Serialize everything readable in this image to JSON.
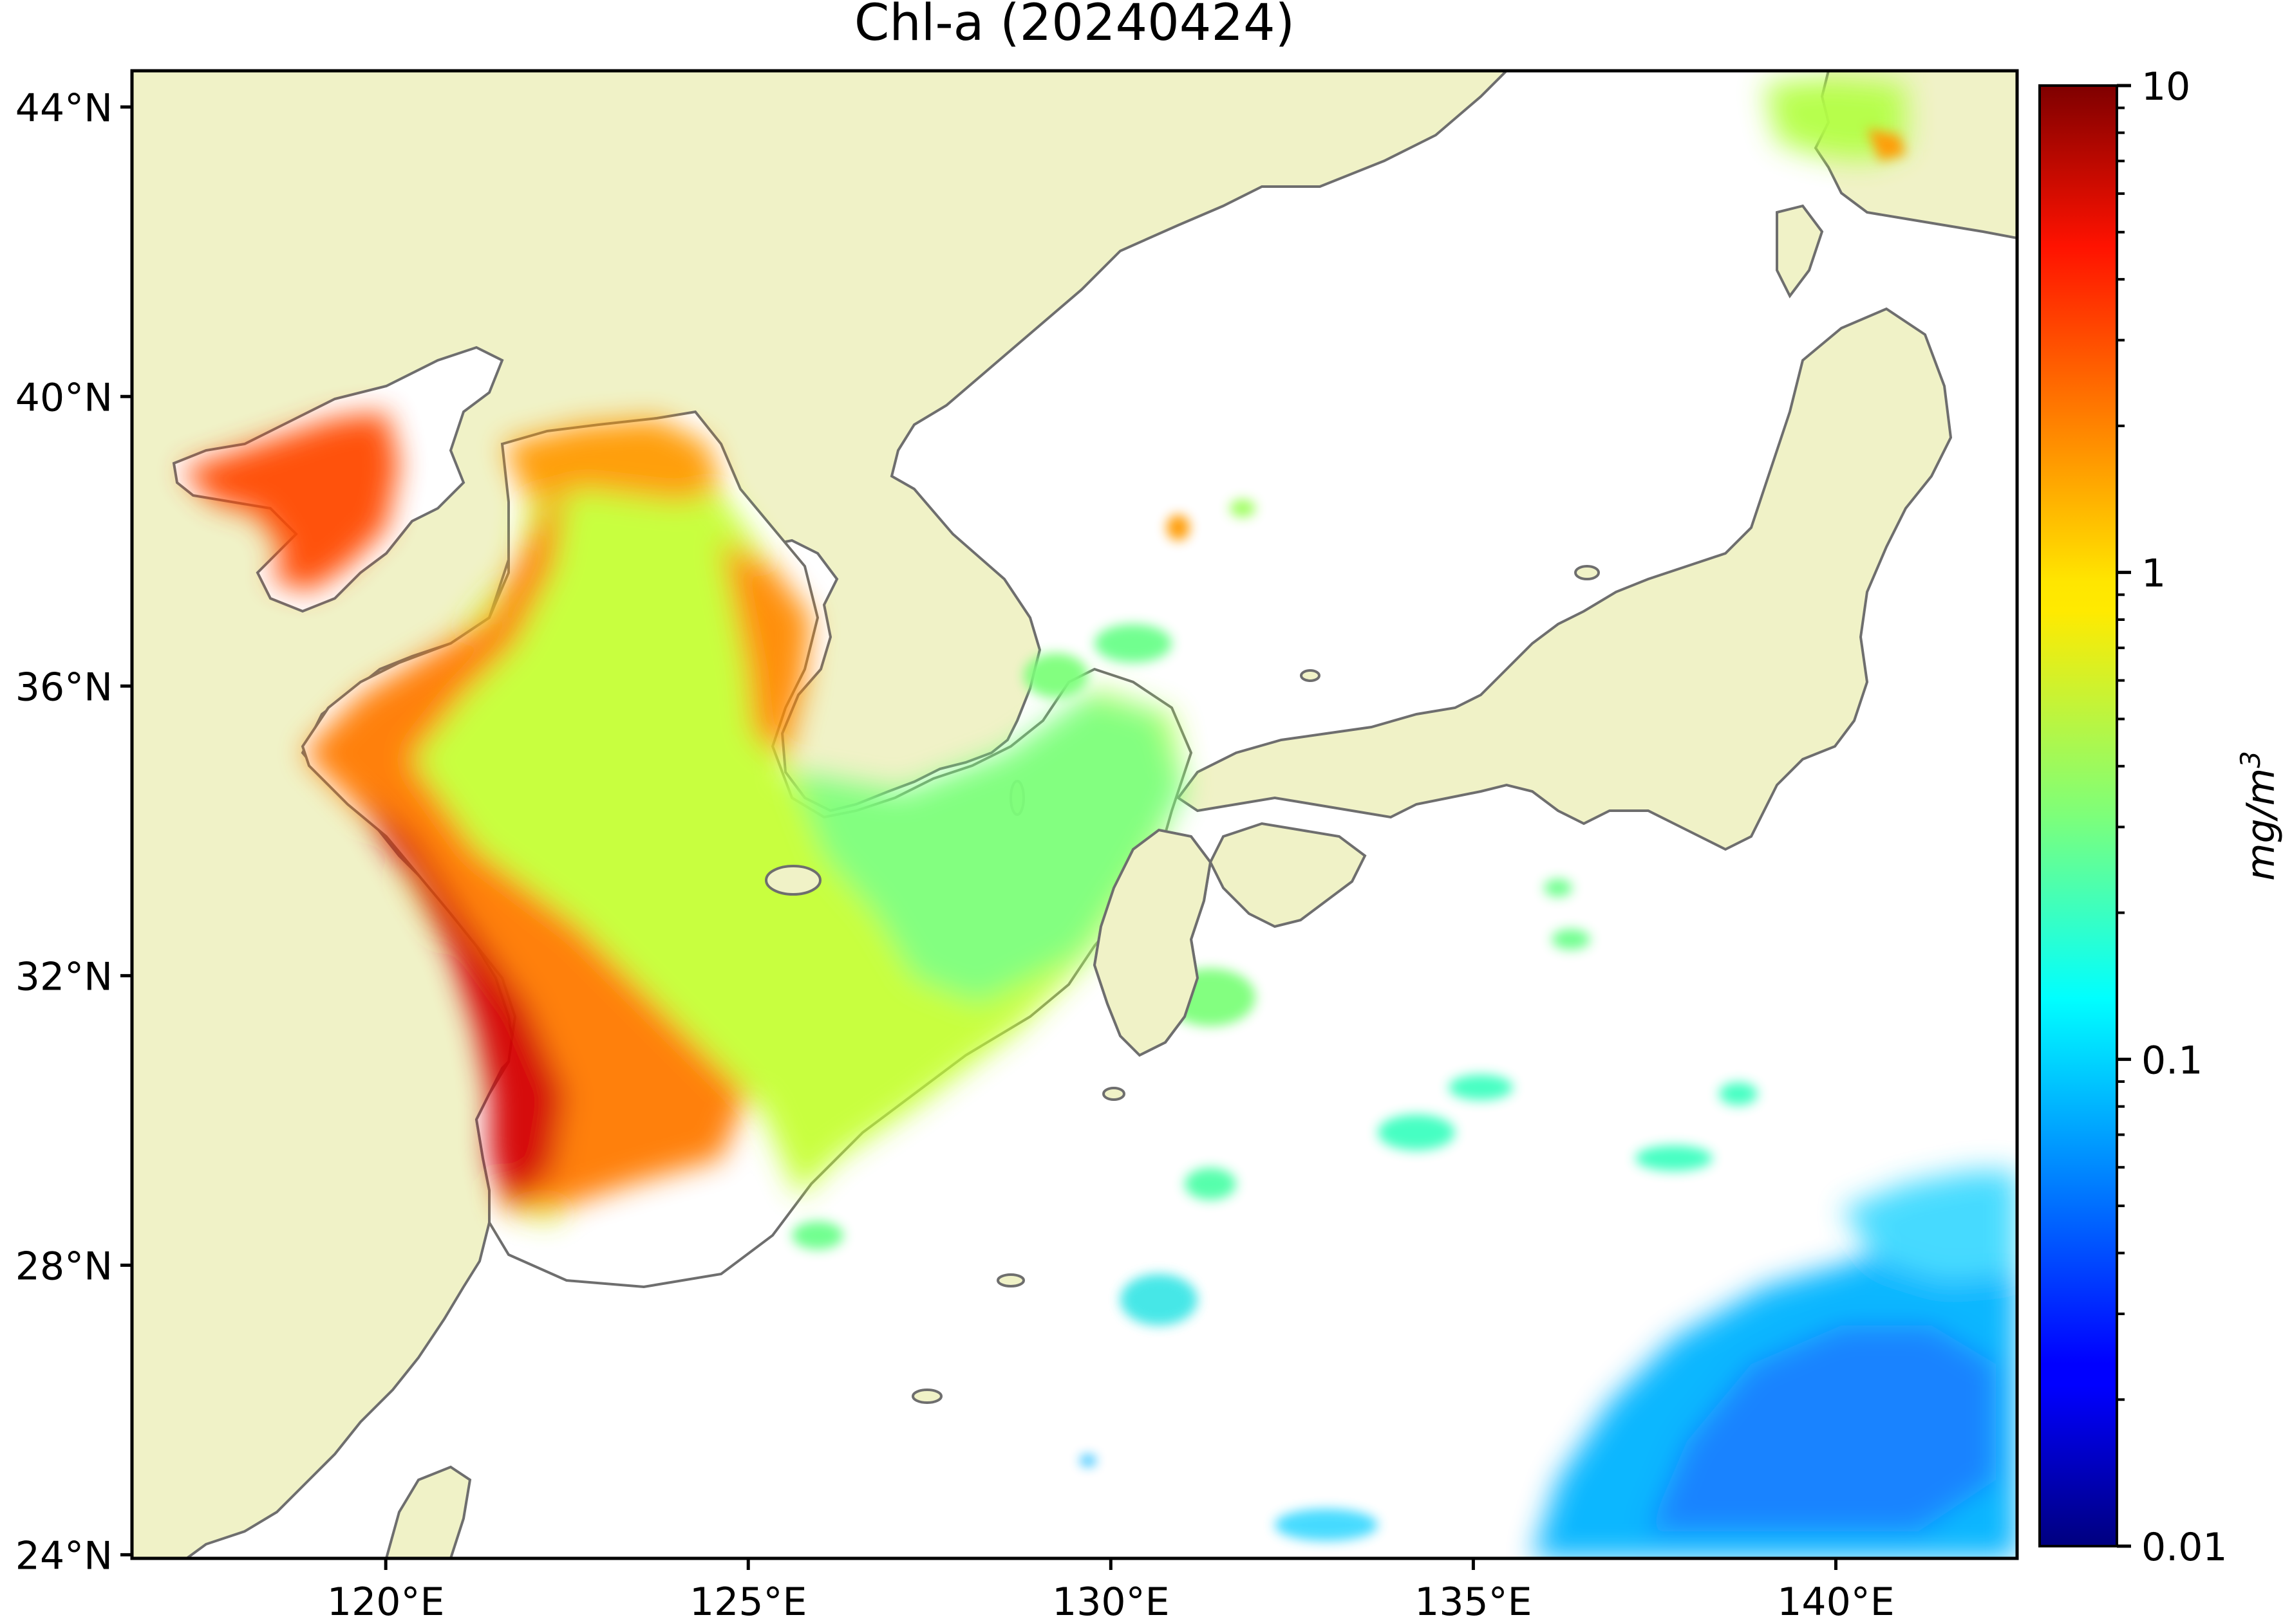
{
  "title": "Chl-a (20240424)",
  "axes": {
    "lat_ticks": [
      {
        "label": "44°N",
        "value": 44
      },
      {
        "label": "40°N",
        "value": 40
      },
      {
        "label": "36°N",
        "value": 36
      },
      {
        "label": "32°N",
        "value": 32
      },
      {
        "label": "28°N",
        "value": 28
      },
      {
        "label": "24°N",
        "value": 24
      }
    ],
    "lon_ticks": [
      {
        "label": "120°E",
        "value": 120
      },
      {
        "label": "125°E",
        "value": 125
      },
      {
        "label": "130°E",
        "value": 130
      },
      {
        "label": "135°E",
        "value": 135
      },
      {
        "label": "140°E",
        "value": 140
      }
    ],
    "lon_range": [
      116.5,
      142.5
    ],
    "lat_range": [
      23.95,
      44.5
    ]
  },
  "colorbar": {
    "label": "mg/m",
    "label_sup": "3",
    "scale": "log",
    "range": [
      0.01,
      10
    ],
    "ticks": [
      {
        "label": "10",
        "value": 10
      },
      {
        "label": "1",
        "value": 1
      },
      {
        "label": "0.1",
        "value": 0.1
      },
      {
        "label": "0.01",
        "value": 0.01
      }
    ],
    "colormap": "jet"
  },
  "colors": {
    "land": "#f0f2c7",
    "coast": "#6e6e6e",
    "ocean_nodata": "#ffffff",
    "frame": "#000000"
  }
}
